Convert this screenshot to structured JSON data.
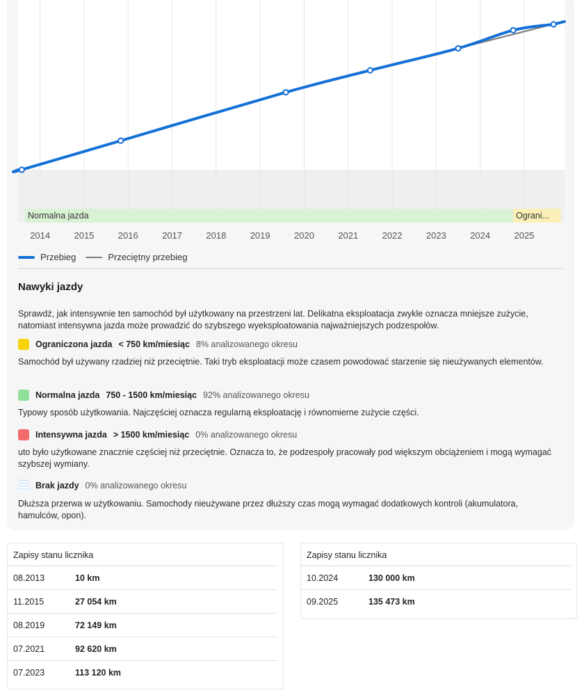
{
  "chart_data": {
    "type": "line",
    "x_ticks": [
      "2014",
      "2015",
      "2016",
      "2017",
      "2018",
      "2019",
      "2020",
      "2021",
      "2022",
      "2023",
      "2024",
      "2025"
    ],
    "xlim": [
      "2013-07",
      "2025-12"
    ],
    "ylim": [
      0,
      140000
    ],
    "grid": "vertical",
    "legend_position": "bottom-left",
    "series": [
      {
        "name": "Przebieg",
        "color": "#1470d6",
        "points": [
          {
            "x": "2013-08",
            "y": 10
          },
          {
            "x": "2015-11",
            "y": 27054
          },
          {
            "x": "2019-08",
            "y": 72149
          },
          {
            "x": "2021-07",
            "y": 92620
          },
          {
            "x": "2023-07",
            "y": 113120
          },
          {
            "x": "2024-10",
            "y": 130000
          },
          {
            "x": "2025-09",
            "y": 135473
          }
        ]
      },
      {
        "name": "Przeciętny przebieg",
        "color": "#7d7d7d",
        "points": [
          {
            "x": "2013-08",
            "y": 10
          },
          {
            "x": "2019-08",
            "y": 72149
          },
          {
            "x": "2023-07",
            "y": 113120
          },
          {
            "x": "2025-11",
            "y": 137500
          }
        ]
      }
    ],
    "bands": [
      {
        "label": "Normalna jazda",
        "from": "2013-08",
        "to": "2024-10",
        "color": "#d9f2d3"
      },
      {
        "label": "Ograni...",
        "from": "2024-10",
        "to": "2025-11",
        "color": "#fbf1b8"
      }
    ]
  },
  "driving": {
    "title": "Nawyki jazdy",
    "intro": "Sprawdź, jak intensywnie ten samochód był użytkowany na przestrzeni lat. Delikatna eksploatacja zwykle oznacza mniejsze zużycie, natomiast intensywna jazda może prowadzić do szybszego wyeksploatowania najważniejszych podzespołów.",
    "items": [
      {
        "name": "Ograniczona jazda",
        "range": "< 750 km/miesiąc",
        "share": "8% analizowanego okresu",
        "color": "#f9d20f",
        "desc": "Samochód był używany rzadziej niż przeciętnie. Taki tryb eksploatacji może czasem powodować starzenie się nieużywanych elementów."
      },
      {
        "name": "Normalna jazda",
        "range": "750 - 1500 km/miesiąc",
        "share": "92% analizowanego okresu",
        "color": "#92df9a",
        "desc": "Typowy sposób użytkowania. Najczęściej oznacza regularną eksploatację i równomierne zużycie części."
      },
      {
        "name": "Intensywna jazda",
        "range": "> 1500 km/miesiąc",
        "share": "0% analizowanego okresu",
        "color": "#f26a6a",
        "desc": "uto było użytkowane znacznie częściej niż przeciętnie. Oznacza to, że podzespoły pracowały pod większym obciążeniem i mogą wymagać szybszej wymiany."
      },
      {
        "name": "Brak jazdy",
        "range": "",
        "share": "0% analizowanego okresu",
        "color": "striped",
        "desc": "Dłuższa przerwa w użytkowaniu. Samochody nieużywane przez dłuższy czas mogą wymagać dodatkowych kontroli (akumulatora, hamulców, opon)."
      }
    ]
  },
  "odometer_left": {
    "title": "Zapisy stanu licznika",
    "rows": [
      {
        "date": "08.2013",
        "value": "10 km"
      },
      {
        "date": "11.2015",
        "value": "27 054 km"
      },
      {
        "date": "08.2019",
        "value": "72 149 km"
      },
      {
        "date": "07.2021",
        "value": "92 620 km"
      },
      {
        "date": "07.2023",
        "value": "113 120 km"
      }
    ]
  },
  "odometer_right": {
    "title": "Zapisy stanu licznika",
    "rows": [
      {
        "date": "10.2024",
        "value": "130 000 km"
      },
      {
        "date": "09.2025",
        "value": "135 473 km"
      }
    ]
  }
}
